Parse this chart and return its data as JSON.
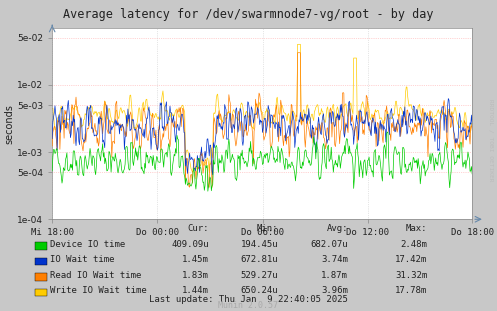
{
  "title": "Average latency for /dev/swarmnode7-vg/root - by day",
  "ylabel": "seconds",
  "background_color": "#c8c8c8",
  "plot_bg_color": "#ffffff",
  "ylim_low": 0.0001,
  "ylim_high": 0.07,
  "yticks": [
    0.0001,
    0.0005,
    0.001,
    0.005,
    0.01,
    0.05
  ],
  "ytick_labels": [
    "1e-04",
    "5e-04",
    "1e-03",
    "5e-03",
    "1e-02",
    "5e-02"
  ],
  "xtick_labels": [
    "Mi 18:00",
    "Do 00:00",
    "Do 06:00",
    "Do 12:00",
    "Do 18:00"
  ],
  "series": [
    {
      "label": "Device IO time",
      "color": "#00cc00",
      "mean_log": -7.26,
      "sigma": 0.55,
      "clip_lo": 0.0002,
      "clip_hi": 0.003
    },
    {
      "label": "IO Wait time",
      "color": "#0033cc",
      "mean_log": -5.89,
      "sigma": 0.6,
      "clip_lo": 0.0003,
      "clip_hi": 0.02
    },
    {
      "label": "Read IO Wait time",
      "color": "#ff7f00",
      "mean_log": -6.21,
      "sigma": 0.7,
      "clip_lo": 0.0003,
      "clip_hi": 0.03
    },
    {
      "label": "Write IO Wait time",
      "color": "#ffcc00",
      "mean_log": -5.81,
      "sigma": 0.65,
      "clip_lo": 0.0003,
      "clip_hi": 0.04
    }
  ],
  "legend_stats": [
    {
      "cur": "409.09u",
      "min": "194.45u",
      "avg": "682.07u",
      "max": "2.48m"
    },
    {
      "cur": "1.45m",
      "min": "672.81u",
      "avg": "3.74m",
      "max": "17.42m"
    },
    {
      "cur": "1.83m",
      "min": "529.27u",
      "avg": "1.87m",
      "max": "31.32m"
    },
    {
      "cur": "1.44m",
      "min": "650.24u",
      "avg": "3.96m",
      "max": "17.78m"
    }
  ],
  "last_update": "Last update: Thu Jan  9 22:40:05 2025",
  "munin_version": "Munin 2.0.57",
  "rrdtool_watermark": "RRDTOOL / TOBI OETIKER"
}
